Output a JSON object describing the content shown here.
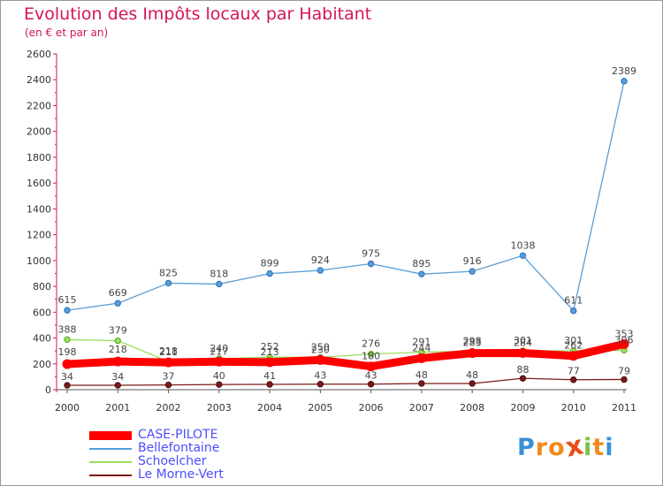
{
  "header": {
    "title": "Evolution des Impôts locaux par Habitant",
    "subtitle": "(en € et par an)"
  },
  "chart_data": {
    "type": "line",
    "title": "Evolution des Impôts locaux par Habitant",
    "subtitle": "(en € et par an)",
    "xlabel": "",
    "ylabel": "",
    "x": [
      2000,
      2001,
      2002,
      2003,
      2004,
      2005,
      2006,
      2007,
      2008,
      2009,
      2010,
      2011
    ],
    "ylim": [
      0,
      2600
    ],
    "yticks": [
      0,
      200,
      400,
      600,
      800,
      1000,
      1200,
      1400,
      1600,
      1800,
      2000,
      2200,
      2400,
      2600
    ],
    "grid": false,
    "legend_position": "bottom-left",
    "series": [
      {
        "name": "Bellefontaine",
        "color": "#5a9ed6",
        "values": [
          615,
          669,
          825,
          818,
          899,
          924,
          975,
          895,
          916,
          1038,
          611,
          2389
        ]
      },
      {
        "name": "Schoelcher",
        "color": "#99e05c",
        "values": [
          388,
          379,
          218,
          240,
          252,
          250,
          276,
          291,
          298,
          301,
          301,
          306
        ]
      },
      {
        "name": "Le Morne-Vert",
        "color": "#7a1a1a",
        "values": [
          34,
          34,
          37,
          40,
          41,
          43,
          43,
          48,
          48,
          88,
          77,
          79
        ]
      },
      {
        "name": "CASE-PILOTE",
        "color": "#ff0000",
        "values": [
          198,
          218,
          211,
          217,
          213,
          230,
          180,
          244,
          283,
          284,
          262,
          353
        ]
      }
    ]
  },
  "legend": {
    "items": [
      {
        "label": "CASE-PILOTE",
        "color": "#ff0000"
      },
      {
        "label": "Bellefontaine",
        "color": "#5a9ed6"
      },
      {
        "label": "Schoelcher",
        "color": "#99e05c"
      },
      {
        "label": "Le Morne-Vert",
        "color": "#7a1a1a"
      }
    ]
  },
  "logo": {
    "letters": [
      "P",
      "r",
      "o",
      "x",
      "i",
      "t",
      "i"
    ],
    "colors": [
      "#3a8fd8",
      "#f08a1c",
      "#f08a1c",
      "#e8501a",
      "#7cc242",
      "#f08a1c",
      "#3a8fd8"
    ]
  }
}
